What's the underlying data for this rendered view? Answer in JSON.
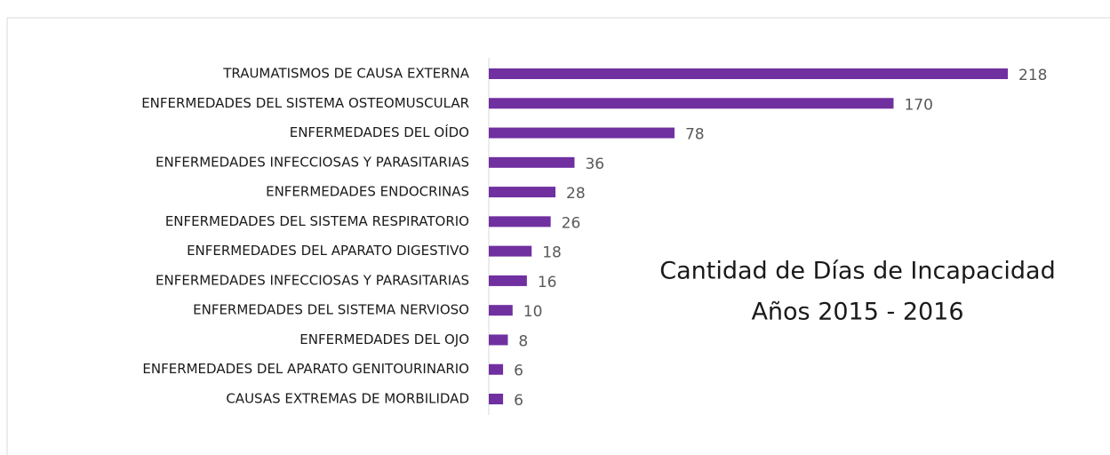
{
  "chart_data": {
    "type": "bar",
    "orientation": "horizontal",
    "title": "Cantidad de Días de Incapacidad",
    "subtitle": "Años 2015 - 2016",
    "categories": [
      "TRAUMATISMOS DE CAUSA EXTERNA",
      "ENFERMEDADES DEL SISTEMA OSTEOMUSCULAR",
      "ENFERMEDADES DEL OÍDO",
      "ENFERMEDADES INFECCIOSAS Y PARASITARIAS",
      "ENFERMEDADES ENDOCRINAS",
      "ENFERMEDADES DEL SISTEMA RESPIRATORIO",
      "ENFERMEDADES DEL APARATO DIGESTIVO",
      "ENFERMEDADES INFECCIOSAS Y PARASITARIAS",
      "ENFERMEDADES DEL SISTEMA NERVIOSO",
      "ENFERMEDADES DEL OJO",
      "ENFERMEDADES DEL APARATO GENITOURINARIO",
      "CAUSAS EXTREMAS DE MORBILIDAD"
    ],
    "values": [
      218,
      170,
      78,
      36,
      28,
      26,
      18,
      16,
      10,
      8,
      6,
      6
    ],
    "color": "#7030a0",
    "xlim": [
      0,
      240
    ]
  }
}
